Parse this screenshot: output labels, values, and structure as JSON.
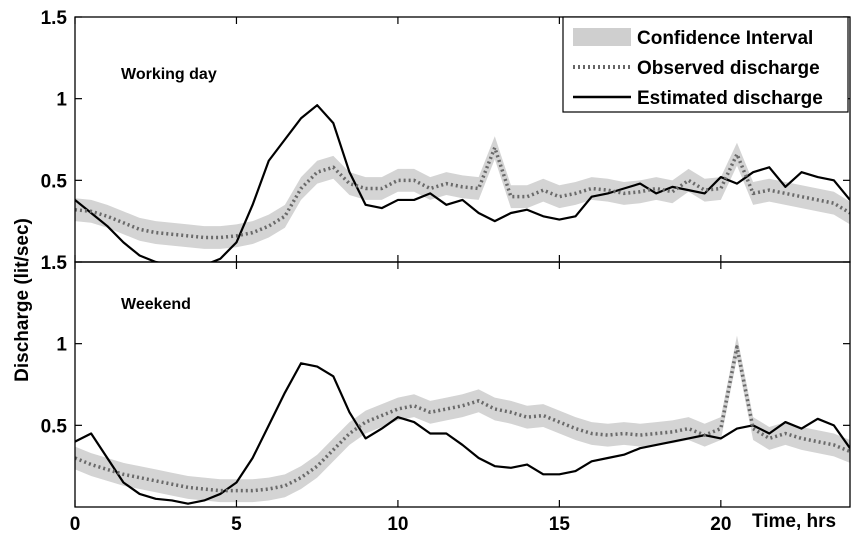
{
  "chart_data": [
    {
      "type": "line",
      "panel_label": "Working day",
      "ylabel": "Discharge (lit/sec)",
      "xlim": [
        0,
        24
      ],
      "ylim": [
        0,
        1.5
      ],
      "x_ticks": [
        0,
        5,
        10,
        15,
        20
      ],
      "y_ticks": [
        0.5,
        1,
        1.5
      ],
      "y_tick_labels": [
        "0.5",
        "1",
        "1.5"
      ],
      "grid": false,
      "legend": {
        "position": "top-right",
        "entries": [
          "Confidence Interval",
          "Observed discharge",
          "Estimated discharge"
        ]
      },
      "series": [
        {
          "name": "Estimated discharge",
          "style": "solid-black",
          "x": [
            0,
            0.5,
            1,
            1.5,
            2,
            2.5,
            3,
            3.5,
            4,
            4.5,
            5,
            5.5,
            6,
            6.5,
            7,
            7.5,
            8,
            8.5,
            9,
            9.5,
            10,
            10.5,
            11,
            11.5,
            12,
            12.5,
            13,
            13.5,
            14,
            14.5,
            15,
            15.5,
            16,
            16.5,
            17,
            17.5,
            18,
            18.5,
            19,
            19.5,
            20,
            20.5,
            21,
            21.5,
            22,
            22.5,
            23,
            23.5,
            24
          ],
          "values": [
            0.38,
            0.3,
            0.22,
            0.12,
            0.04,
            0.0,
            -0.02,
            -0.04,
            -0.02,
            0.02,
            0.12,
            0.35,
            0.62,
            0.75,
            0.88,
            0.96,
            0.85,
            0.55,
            0.35,
            0.33,
            0.38,
            0.38,
            0.42,
            0.35,
            0.38,
            0.3,
            0.25,
            0.3,
            0.32,
            0.28,
            0.26,
            0.28,
            0.4,
            0.42,
            0.45,
            0.48,
            0.42,
            0.46,
            0.44,
            0.42,
            0.52,
            0.48,
            0.55,
            0.58,
            0.46,
            0.55,
            0.52,
            0.5,
            0.38
          ]
        },
        {
          "name": "Observed discharge",
          "style": "dotted-grey",
          "x": [
            0,
            0.5,
            1,
            1.5,
            2,
            2.5,
            3,
            3.5,
            4,
            4.5,
            5,
            5.5,
            6,
            6.5,
            7,
            7.5,
            8,
            8.5,
            9,
            9.5,
            10,
            10.5,
            11,
            11.5,
            12,
            12.5,
            13,
            13.5,
            14,
            14.5,
            15,
            15.5,
            16,
            16.5,
            17,
            17.5,
            18,
            18.5,
            19,
            19.5,
            20,
            20.5,
            21,
            21.5,
            22,
            22.5,
            23,
            23.5,
            24
          ],
          "values": [
            0.32,
            0.31,
            0.28,
            0.24,
            0.2,
            0.18,
            0.17,
            0.16,
            0.15,
            0.15,
            0.16,
            0.18,
            0.22,
            0.28,
            0.45,
            0.55,
            0.58,
            0.48,
            0.45,
            0.45,
            0.5,
            0.5,
            0.45,
            0.48,
            0.46,
            0.45,
            0.7,
            0.4,
            0.4,
            0.44,
            0.4,
            0.42,
            0.45,
            0.44,
            0.42,
            0.43,
            0.45,
            0.43,
            0.5,
            0.44,
            0.45,
            0.66,
            0.42,
            0.44,
            0.42,
            0.4,
            0.38,
            0.36,
            0.3
          ]
        }
      ]
    },
    {
      "type": "line",
      "panel_label": "Weekend",
      "ylabel": "Discharge (lit/sec)",
      "xlabel": "Time, hrs",
      "xlim": [
        0,
        24
      ],
      "ylim": [
        0,
        1.5
      ],
      "x_ticks": [
        0,
        5,
        10,
        15,
        20
      ],
      "x_tick_labels": [
        "0",
        "5",
        "10",
        "15",
        "20"
      ],
      "y_ticks": [
        0.5,
        1,
        1.5
      ],
      "y_tick_labels": [
        "0.5",
        "1",
        "1.5"
      ],
      "grid": false,
      "series": [
        {
          "name": "Estimated discharge",
          "style": "solid-black",
          "x": [
            0,
            0.5,
            1,
            1.5,
            2,
            2.5,
            3,
            3.5,
            4,
            4.5,
            5,
            5.5,
            6,
            6.5,
            7,
            7.5,
            8,
            8.5,
            9,
            9.5,
            10,
            10.5,
            11,
            11.5,
            12,
            12.5,
            13,
            13.5,
            14,
            14.5,
            15,
            15.5,
            16,
            16.5,
            17,
            17.5,
            18,
            18.5,
            19,
            19.5,
            20,
            20.5,
            21,
            21.5,
            22,
            22.5,
            23,
            23.5,
            24
          ],
          "values": [
            0.4,
            0.45,
            0.3,
            0.15,
            0.08,
            0.05,
            0.04,
            0.02,
            0.04,
            0.08,
            0.15,
            0.3,
            0.5,
            0.7,
            0.88,
            0.86,
            0.8,
            0.58,
            0.42,
            0.48,
            0.55,
            0.52,
            0.45,
            0.45,
            0.38,
            0.3,
            0.25,
            0.24,
            0.26,
            0.2,
            0.2,
            0.22,
            0.28,
            0.3,
            0.32,
            0.36,
            0.38,
            0.4,
            0.42,
            0.44,
            0.42,
            0.48,
            0.5,
            0.45,
            0.52,
            0.48,
            0.54,
            0.5,
            0.36
          ]
        },
        {
          "name": "Observed discharge",
          "style": "dotted-grey",
          "x": [
            0,
            0.5,
            1,
            1.5,
            2,
            2.5,
            3,
            3.5,
            4,
            4.5,
            5,
            5.5,
            6,
            6.5,
            7,
            7.5,
            8,
            8.5,
            9,
            9.5,
            10,
            10.5,
            11,
            11.5,
            12,
            12.5,
            13,
            13.5,
            14,
            14.5,
            15,
            15.5,
            16,
            16.5,
            17,
            17.5,
            18,
            18.5,
            19,
            19.5,
            20,
            20.5,
            21,
            21.5,
            22,
            22.5,
            23,
            23.5,
            24
          ],
          "values": [
            0.3,
            0.26,
            0.23,
            0.2,
            0.18,
            0.16,
            0.14,
            0.12,
            0.11,
            0.1,
            0.1,
            0.1,
            0.11,
            0.13,
            0.18,
            0.25,
            0.35,
            0.45,
            0.52,
            0.56,
            0.6,
            0.62,
            0.58,
            0.6,
            0.62,
            0.65,
            0.6,
            0.58,
            0.55,
            0.56,
            0.52,
            0.48,
            0.45,
            0.44,
            0.45,
            0.44,
            0.45,
            0.46,
            0.48,
            0.44,
            0.48,
            0.98,
            0.48,
            0.42,
            0.45,
            0.42,
            0.4,
            0.38,
            0.34
          ]
        }
      ]
    }
  ]
}
